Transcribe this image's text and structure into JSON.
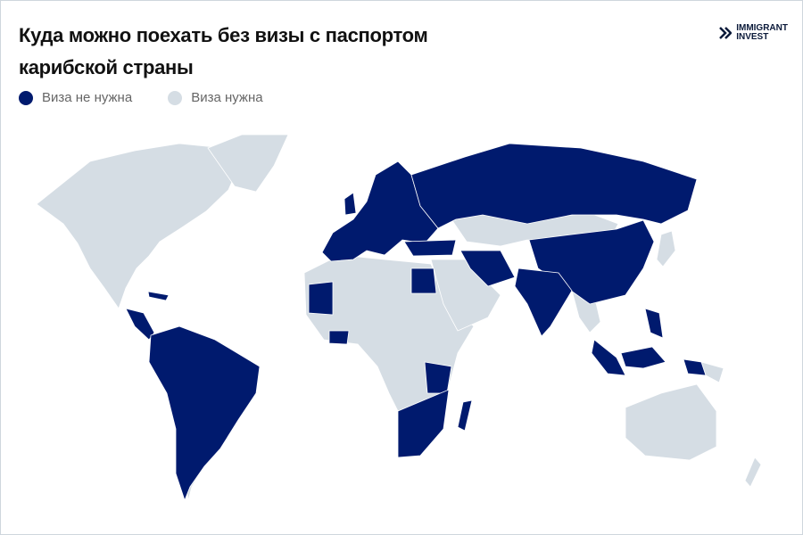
{
  "header": {
    "title": [
      "Куда можно поехать без визы с паспортом",
      "карибской страны"
    ],
    "logo": [
      "IMMIGRANT",
      "INVEST"
    ]
  },
  "legend": [
    {
      "label": "Виза не нужна",
      "color": "#001a6e"
    },
    {
      "label": "Виза нужна",
      "color": "#d5dde4"
    }
  ]
}
